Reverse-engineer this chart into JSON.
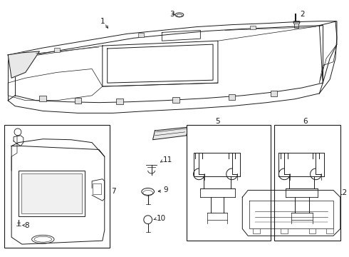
{
  "bg_color": "#ffffff",
  "line_color": "#1a1a1a",
  "lw": 0.7
}
